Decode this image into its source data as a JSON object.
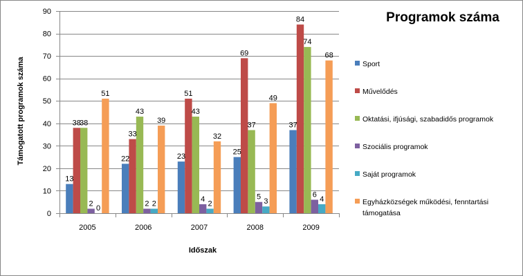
{
  "chart_data": {
    "type": "bar",
    "title": "Programok száma",
    "xlabel": "Időszak",
    "ylabel": "Támogatott programok száma",
    "categories": [
      "2005",
      "2006",
      "2007",
      "2008",
      "2009"
    ],
    "ylim": [
      0,
      90
    ],
    "yticks": [
      0,
      10,
      20,
      30,
      40,
      50,
      60,
      70,
      80,
      90
    ],
    "grid": true,
    "legend_position": "right",
    "series": [
      {
        "name": "Sport",
        "color": "#4A7EBB",
        "values": [
          13,
          22,
          23,
          25,
          37
        ]
      },
      {
        "name": "Művelődés",
        "color": "#BE4B48",
        "values": [
          38,
          33,
          51,
          69,
          84
        ]
      },
      {
        "name": "Oktatási, ifjúsági, szabadidős programok",
        "color": "#98B954",
        "values": [
          38,
          43,
          43,
          37,
          74
        ]
      },
      {
        "name": "Szociális programok",
        "color": "#7D60A0",
        "values": [
          2,
          2,
          4,
          5,
          6
        ]
      },
      {
        "name": "Saját programok",
        "color": "#46AAC5",
        "values": [
          0,
          2,
          2,
          3,
          4
        ]
      },
      {
        "name": "Egyházközségek működési, fenntartási támogatása",
        "legend_lines": [
          "Egyházközségek működési, fenntartási",
          "támogatása"
        ],
        "color": "#F59D56",
        "values": [
          51,
          39,
          32,
          49,
          68
        ]
      }
    ],
    "data_labels": [
      [
        "13",
        "22",
        "23",
        "25",
        "37"
      ],
      [
        "38",
        "33",
        "51",
        "69",
        "84"
      ],
      [
        "38",
        "43",
        "43",
        "37",
        "74"
      ],
      [
        "2",
        "2",
        "4",
        "5",
        "6"
      ],
      [
        "0",
        "2",
        "2",
        "3",
        "4"
      ],
      [
        "51",
        "39",
        "32",
        "49",
        "68"
      ]
    ]
  }
}
